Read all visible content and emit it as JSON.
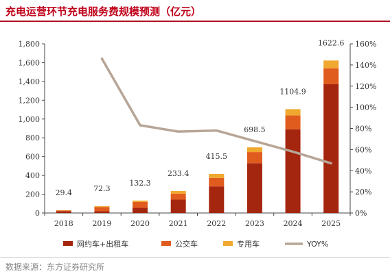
{
  "title": "充电运营环节充电服务费规模预测（亿元）",
  "source": "数据来源：东方证券研究所",
  "chart_data": {
    "type": "bar",
    "stacked": true,
    "title": "充电运营环节充电服务费规模预测（亿元）",
    "categories": [
      "2018",
      "2019",
      "2020",
      "2021",
      "2022",
      "2023",
      "2024",
      "2025"
    ],
    "series": [
      {
        "name": "网约车+出租车",
        "color": "#a5260f",
        "values": [
          20,
          18,
          55,
          142,
          283,
          530,
          890,
          1370
        ]
      },
      {
        "name": "公交车",
        "color": "#e05c1e",
        "values": [
          6,
          46,
          62,
          62,
          90,
          118,
          148,
          170
        ]
      },
      {
        "name": "专用车",
        "color": "#f0a830",
        "values": [
          3.4,
          8.3,
          15.3,
          29.4,
          42.5,
          50.5,
          66.9,
          82.6
        ]
      }
    ],
    "totals": [
      29.4,
      72.3,
      132.3,
      233.4,
      415.5,
      698.5,
      1104.9,
      1622.6
    ],
    "total_labels": [
      "29.4",
      "72.3",
      "132.3",
      "233.4",
      "415.5",
      "698.5",
      "1104.9",
      "1622.6"
    ],
    "line_series": {
      "name": "YOY%",
      "color": "#b7a596",
      "axis": "right",
      "values": [
        null,
        1.46,
        0.83,
        0.77,
        0.78,
        0.68,
        0.58,
        0.47
      ]
    },
    "y_left": {
      "min": 0,
      "max": 1800,
      "ticks": [
        "0",
        "200",
        "400",
        "600",
        "800",
        "1,000",
        "1,200",
        "1,400",
        "1,600",
        "1,800"
      ]
    },
    "y_right": {
      "min": 0,
      "max": 1.6,
      "ticks": [
        "0%",
        "20%",
        "40%",
        "60%",
        "80%",
        "100%",
        "120%",
        "140%",
        "160%"
      ]
    },
    "legend": [
      "网约车+出租车",
      "公交车",
      "专用车",
      "YOY%"
    ],
    "legend_placement": "bottom",
    "grid": false
  }
}
